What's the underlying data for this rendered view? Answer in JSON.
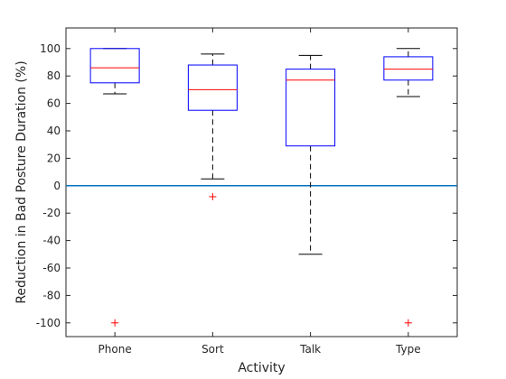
{
  "chart_data": {
    "type": "box",
    "xlabel": "Activity",
    "ylabel": "Reduction in Bad Posture Duration (%)",
    "ylim": [
      -110,
      115
    ],
    "yticks": [
      -100,
      -80,
      -60,
      -40,
      -20,
      0,
      20,
      40,
      60,
      80,
      100
    ],
    "ytick_labels": [
      "-100",
      "-80",
      "-60",
      "-40",
      "-20",
      "0",
      "20",
      "40",
      "60",
      "80",
      "100"
    ],
    "categories": [
      "Phone",
      "Sort",
      "Talk",
      "Type"
    ],
    "boxes": [
      {
        "category": "Phone",
        "whisker_low": 67,
        "q1": 75,
        "median": 86,
        "q3": 100,
        "whisker_high": 100,
        "outliers": [
          -100
        ]
      },
      {
        "category": "Sort",
        "whisker_low": 5,
        "q1": 55,
        "median": 70,
        "q3": 88,
        "whisker_high": 96,
        "outliers": [
          -8
        ]
      },
      {
        "category": "Talk",
        "whisker_low": -50,
        "q1": 29,
        "median": 77,
        "q3": 85,
        "whisker_high": 95,
        "outliers": []
      },
      {
        "category": "Type",
        "whisker_low": 65,
        "q1": 77,
        "median": 85,
        "q3": 94,
        "whisker_high": 100,
        "outliers": [
          -100
        ]
      }
    ],
    "reference_line": 0,
    "grid": false,
    "colors": {
      "box": "#0000ff",
      "median": "#ff0000",
      "whisker": "#000000",
      "outlier": "#ff0000",
      "reference_line": "#0072bd",
      "axis": "#262626"
    }
  }
}
